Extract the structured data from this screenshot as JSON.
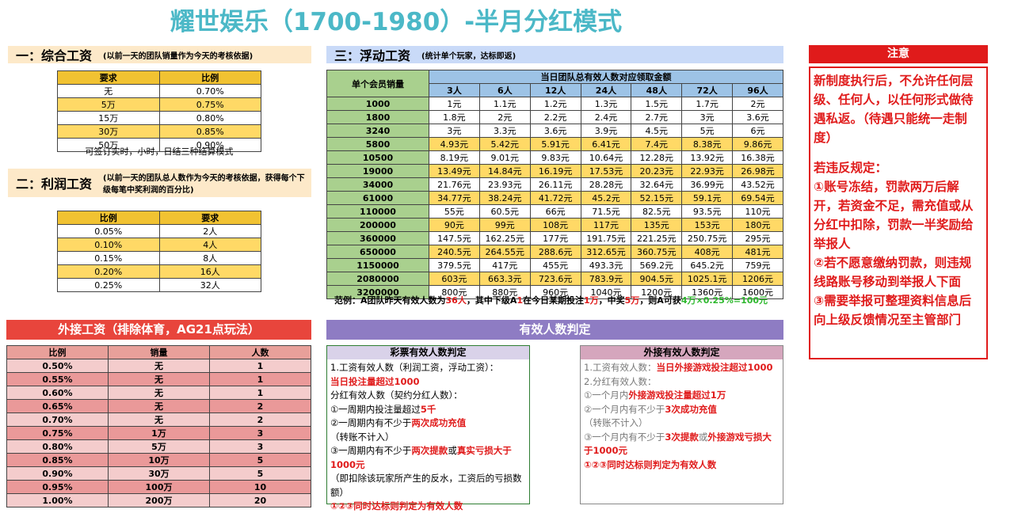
{
  "title": "耀世娱乐（1700-1980）-半月分红模式",
  "section1": {
    "heading": "一：综合工资",
    "note": "(以前一天的团队销量作为今天的考核依据)",
    "header": [
      "要求",
      "比例"
    ],
    "rows": [
      [
        "无",
        "0.70%"
      ],
      [
        "5万",
        "0.75%"
      ],
      [
        "15万",
        "0.80%"
      ],
      [
        "30万",
        "0.85%"
      ],
      [
        "50万",
        "0.90%"
      ]
    ],
    "footnote": "可签订实时，小时，日结三种结算模式"
  },
  "section2": {
    "heading": "二：利润工资",
    "note": "(以前一天的团队总人数作为今天的考核依据，获得每个下级每笔中奖利润的百分比)",
    "header": [
      "比例",
      "要求"
    ],
    "rows": [
      [
        "0.05%",
        "2人"
      ],
      [
        "0.10%",
        "4人"
      ],
      [
        "0.15%",
        "8人"
      ],
      [
        "0.20%",
        "16人"
      ],
      [
        "0.25%",
        "32人"
      ]
    ]
  },
  "section3": {
    "heading": "三：浮动工资",
    "note": "(统计单个玩家，达标即返)",
    "corner": "单个会员销量",
    "group": "当日团队总有效人数对应领取金额",
    "columns": [
      "3人",
      "6人",
      "12人",
      "24人",
      "48人",
      "72人",
      "96人"
    ],
    "rows": [
      [
        "1000",
        "1元",
        "1.1元",
        "1.2元",
        "1.3元",
        "1.5元",
        "1.7元",
        "2元"
      ],
      [
        "1800",
        "1.8元",
        "2元",
        "2.2元",
        "2.4元",
        "2.7元",
        "3元",
        "3.6元"
      ],
      [
        "3240",
        "3元",
        "3.3元",
        "3.6元",
        "3.9元",
        "4.5元",
        "5元",
        "6元"
      ],
      [
        "5800",
        "4.93元",
        "5.42元",
        "5.91元",
        "6.41元",
        "7.4元",
        "8.38元",
        "9.86元"
      ],
      [
        "10500",
        "8.19元",
        "9.01元",
        "9.83元",
        "10.64元",
        "12.28元",
        "13.92元",
        "16.38元"
      ],
      [
        "19000",
        "13.49元",
        "14.84元",
        "16.19元",
        "17.53元",
        "20.23元",
        "22.93元",
        "26.98元"
      ],
      [
        "34000",
        "21.76元",
        "23.93元",
        "26.11元",
        "28.28元",
        "32.64元",
        "36.99元",
        "43.52元"
      ],
      [
        "61000",
        "34.77元",
        "38.24元",
        "41.72元",
        "45.2元",
        "52.15元",
        "59.1元",
        "69.54元"
      ],
      [
        "110000",
        "55元",
        "60.5元",
        "66元",
        "71.5元",
        "82.5元",
        "93.5元",
        "110元"
      ],
      [
        "200000",
        "90元",
        "99元",
        "108元",
        "117元",
        "135元",
        "153元",
        "180元"
      ],
      [
        "360000",
        "147.5元",
        "162.25元",
        "177元",
        "191.75元",
        "221.25元",
        "250.75元",
        "295元"
      ],
      [
        "650000",
        "240.5元",
        "264.55元",
        "288.6元",
        "312.65元",
        "360.75元",
        "408元",
        "481元"
      ],
      [
        "1150000",
        "379.5元",
        "417元",
        "455元",
        "493.3元",
        "569.2元",
        "645.2元",
        "759元"
      ],
      [
        "2080000",
        "603元",
        "663.3元",
        "723.6元",
        "783.9元",
        "904.5元",
        "1025.1元",
        "1206元"
      ],
      [
        "3200000",
        "800元",
        "880元",
        "960元",
        "1040元",
        "1200元",
        "1360元",
        "1600元"
      ]
    ],
    "example": [
      "范例：A团队昨天有效人数为",
      "36人",
      "，其中下级A",
      "1",
      "在今日某期投注",
      "1万",
      "，中奖",
      "5万",
      "，则A可获",
      "4万×0.25%=100元"
    ]
  },
  "section4": {
    "heading": "外接工资（排除体育，AG21点玩法）",
    "header": [
      "比例",
      "销量",
      "人数"
    ],
    "rows": [
      [
        "0.50%",
        "无",
        "1"
      ],
      [
        "0.55%",
        "无",
        "1"
      ],
      [
        "0.60%",
        "无",
        "1"
      ],
      [
        "0.65%",
        "无",
        "2"
      ],
      [
        "0.70%",
        "无",
        "2"
      ],
      [
        "0.75%",
        "1万",
        "3"
      ],
      [
        "0.80%",
        "5万",
        "3"
      ],
      [
        "0.85%",
        "10万",
        "5"
      ],
      [
        "0.90%",
        "30万",
        "5"
      ],
      [
        "0.95%",
        "100万",
        "10"
      ],
      [
        "1.00%",
        "200万",
        "20"
      ]
    ]
  },
  "section5": {
    "heading": "有效人数判定",
    "left": {
      "title": "彩票有效人数判定",
      "lines": [
        [
          "1.工资有效人数（利润工资，浮动工资）："
        ],
        [
          {
            "text": "当日投注量超过1000",
            "em": true
          }
        ],
        [
          "分红有效人数（契约分红人数）："
        ],
        [
          "①一周期内投注量超过",
          {
            "text": "5千",
            "em": true
          }
        ],
        [
          "②一周期内有不少于",
          {
            "text": "两次成功充值",
            "em": true
          },
          "（转账不计入）"
        ],
        [
          "③一周期内有不少于",
          {
            "text": "两次提款",
            "em": true
          },
          "或",
          {
            "text": "真实亏损大于1000元",
            "em": true
          }
        ],
        [
          "（即扣除该玩家所产生的反水，工资后的亏损数额）"
        ],
        [
          {
            "text": "①②③同时达标则判定为有效人数",
            "em": true
          }
        ]
      ]
    },
    "right": {
      "title": "外接有效人数判定",
      "lines": [
        [
          "1.工资有效人数：",
          {
            "text": "当日外接游戏投注超过1000",
            "em": true
          }
        ],
        [
          "2.分红有效人数："
        ],
        [
          "①一个月内",
          {
            "text": "外接游戏投注量超过1万",
            "em": true
          }
        ],
        [
          "②一个月内有不少于",
          {
            "text": "3次成功充值",
            "em": true
          },
          "（转账不计入）"
        ],
        [
          "③一个月内有不少于",
          {
            "text": "3次提款",
            "em": true
          },
          "或",
          {
            "text": "外接游戏亏损大于1000元",
            "em": true
          }
        ],
        [
          {
            "text": "①②③同时达标则判定为有效人数",
            "em": true
          }
        ]
      ]
    }
  },
  "notice": {
    "heading": "注意",
    "paragraphs": [
      "新制度执行后，不允许任何层级、任何人，以任何形式做待遇私返。（待遇只能统一走制度）",
      "若违反规定：",
      "①账号冻结，罚款两万后解开，若资金不足，需充值或从分红中扣除，罚款一半奖励给举报人",
      "②若不愿意缴纳罚款，则违规线路账号移动到举报人下面",
      "③需要举报可整理资料信息后向上级反馈情况至主管部门"
    ]
  }
}
